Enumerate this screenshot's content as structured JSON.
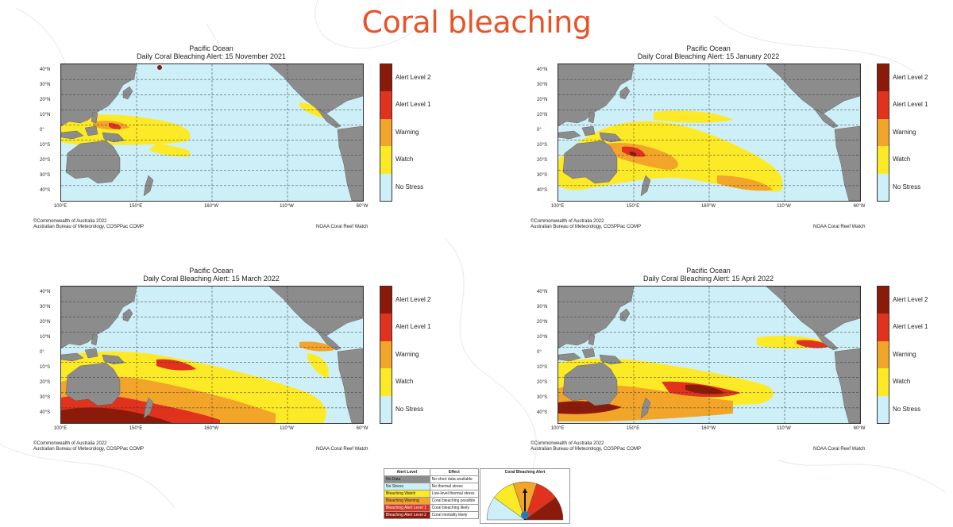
{
  "slide": {
    "title": "Coral bleaching"
  },
  "colors": {
    "no_stress": "#cdeff7",
    "watch": "#fdea26",
    "warning": "#f3a52a",
    "alert1": "#e1321d",
    "alert2": "#8b1a0a",
    "land": "#8c8c8c",
    "title": "#e8542a"
  },
  "legend_levels": [
    "Alert Level 2",
    "Alert Level 1",
    "Warning",
    "Watch",
    "No Stress"
  ],
  "axes": {
    "lat_labels": [
      "40°N",
      "30°N",
      "20°N",
      "10°N",
      "0°",
      "10°S",
      "20°S",
      "30°S",
      "40°S"
    ],
    "lon_labels": [
      "100°E",
      "150°E",
      "160°W",
      "110°W",
      "60°W"
    ]
  },
  "panels": [
    {
      "region": "Pacific Ocean",
      "subtitle": "Daily Coral Bleaching Alert: 15 November 2021",
      "credit_line1": "©Commonwealth of Australia 2022",
      "credit_line2": "Australian Bureau of Meteorology, COSPPac COMP",
      "credit_right": "NOAA Coral Reef Watch"
    },
    {
      "region": "Pacific Ocean",
      "subtitle": "Daily Coral Bleaching Alert: 15 January 2022",
      "credit_line1": "©Commonwealth of Australia 2022",
      "credit_line2": "Australian Bureau of Meteorology, COSPPac COMP",
      "credit_right": "NOAA Coral Reef Watch"
    },
    {
      "region": "Pacific Ocean",
      "subtitle": "Daily Coral Bleaching Alert: 15 March 2022",
      "credit_line1": "©Commonwealth of Australia 2022",
      "credit_line2": "Australian Bureau of Meteorology, COSPPac COMP",
      "credit_right": "NOAA Coral Reef Watch"
    },
    {
      "region": "Pacific Ocean",
      "subtitle": "Daily Coral Bleaching Alert: 15 April 2022",
      "credit_line1": "©Commonwealth of Australia 2022",
      "credit_line2": "Australian Bureau of Meteorology, COSPPac COMP",
      "credit_right": "NOAA Coral Reef Watch"
    }
  ],
  "effects_table": {
    "headers": [
      "Alert Level",
      "Effect"
    ],
    "rows": [
      {
        "level": "No Data",
        "effect": "No short data available",
        "color": "#8c8c8c"
      },
      {
        "level": "No Stress",
        "effect": "No thermal stress",
        "color": "#cdeff7"
      },
      {
        "level": "Bleaching Watch",
        "effect": "Low-level thermal stress",
        "color": "#fdea26"
      },
      {
        "level": "Bleaching Warning",
        "effect": "Coral bleaching possible",
        "color": "#f3a52a"
      },
      {
        "level": "Bleaching Alert Level 1",
        "effect": "Coral bleaching likely",
        "color": "#e1321d"
      },
      {
        "level": "Bleaching Alert Level 2",
        "effect": "Coral mortality likely",
        "color": "#8b1a0a"
      }
    ]
  },
  "gauge": {
    "title": "Coral Bleaching Alert"
  }
}
